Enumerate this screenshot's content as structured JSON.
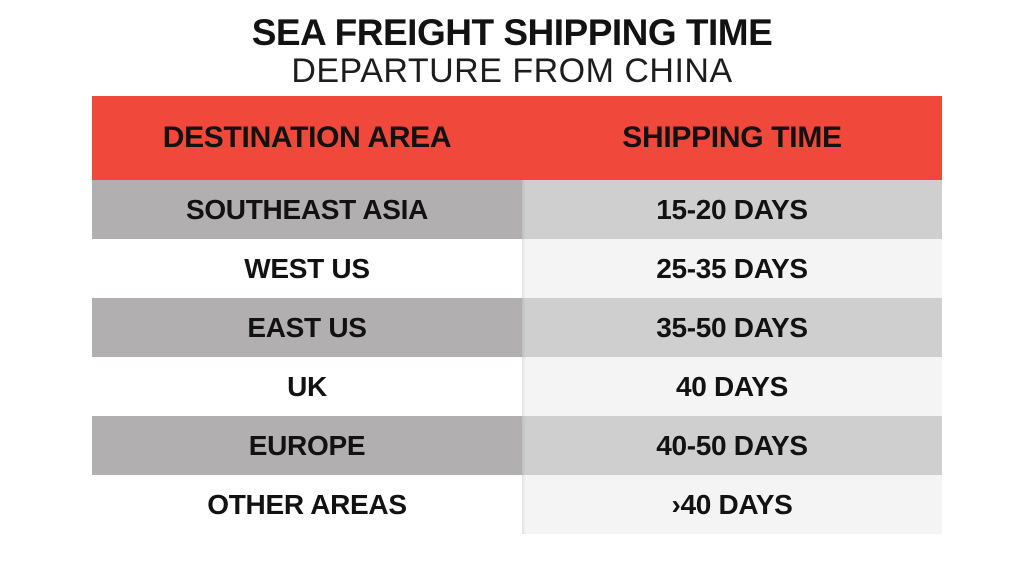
{
  "title": "SEA FREIGHT SHIPPING TIME",
  "subtitle": "DEPARTURE FROM CHINA",
  "table": {
    "headers": [
      "DESTINATION AREA",
      "SHIPPING TIME"
    ],
    "rows": [
      {
        "destination": "SOUTHEAST ASIA",
        "time": "15-20 DAYS"
      },
      {
        "destination": "WEST US",
        "time": "25-35 DAYS"
      },
      {
        "destination": "EAST US",
        "time": "35-50 DAYS"
      },
      {
        "destination": "UK",
        "time": "40 DAYS"
      },
      {
        "destination": "EUROPE",
        "time": "40-50 DAYS"
      },
      {
        "destination": "OTHER AREAS",
        "time": "›40 DAYS"
      }
    ]
  },
  "colors": {
    "header_bg": "#F0483A",
    "row_dark_left": "#B1AFAF",
    "row_dark_right": "#D0CFCF",
    "row_light_left": "#FFFFFF",
    "row_light_right": "#F5F4F4",
    "text": "#121212"
  },
  "chart_data": {
    "type": "table",
    "title": "SEA FREIGHT SHIPPING TIME",
    "subtitle": "DEPARTURE FROM CHINA",
    "columns": [
      "DESTINATION AREA",
      "SHIPPING TIME"
    ],
    "rows": [
      [
        "SOUTHEAST ASIA",
        "15-20 DAYS"
      ],
      [
        "WEST US",
        "25-35 DAYS"
      ],
      [
        "EAST US",
        "35-50 DAYS"
      ],
      [
        "UK",
        "40 DAYS"
      ],
      [
        "EUROPE",
        "40-50 DAYS"
      ],
      [
        "OTHER AREAS",
        "›40 DAYS"
      ]
    ],
    "layout": {
      "legend": "none",
      "grid": "off",
      "header_style": "red-band",
      "row_striping": "alternating-gray"
    }
  }
}
